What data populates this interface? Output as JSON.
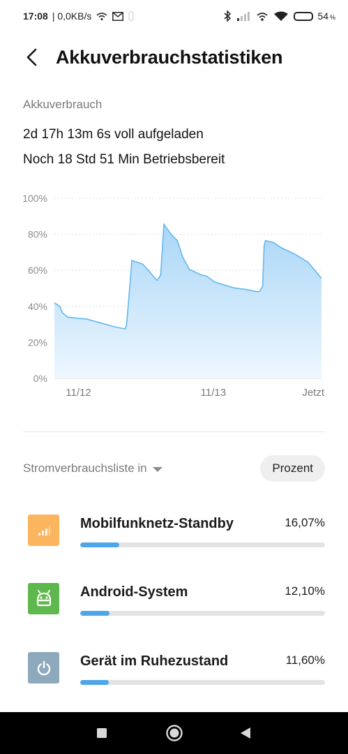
{
  "status_bar": {
    "time": "17:08",
    "speed": "| 0,0KB/s",
    "battery_percent": "54",
    "battery_suffix": "%",
    "battery_level": 0.54
  },
  "header": {
    "title": "Akkuverbrauchstatistiken"
  },
  "summary": {
    "section_label": "Akkuverbrauch",
    "charged_text": "2d 17h 13m 6s voll aufgeladen",
    "remaining_text": "Noch 18 Std 51 Min Betriebsbereit"
  },
  "chart_data": {
    "type": "area",
    "title": "",
    "xlabel": "",
    "ylabel": "",
    "ylim": [
      0,
      100
    ],
    "y_ticks": [
      "100%",
      "80%",
      "60%",
      "40%",
      "20%",
      "0%"
    ],
    "x_ticks": [
      {
        "label": "11/12",
        "x": 0.09
      },
      {
        "label": "11/13",
        "x": 0.595
      },
      {
        "label": "Jetzt",
        "x": 1.0
      }
    ],
    "grid": true,
    "series": [
      {
        "values": [
          [
            0.0,
            42
          ],
          [
            0.02,
            40
          ],
          [
            0.03,
            36.5
          ],
          [
            0.05,
            34
          ],
          [
            0.08,
            33.5
          ],
          [
            0.12,
            33
          ],
          [
            0.18,
            30.5
          ],
          [
            0.23,
            28.5
          ],
          [
            0.265,
            27.5
          ],
          [
            0.27,
            29.5
          ],
          [
            0.275,
            38
          ],
          [
            0.29,
            65.5
          ],
          [
            0.33,
            63.5
          ],
          [
            0.355,
            59.5
          ],
          [
            0.38,
            55
          ],
          [
            0.385,
            54.5
          ],
          [
            0.398,
            57.5
          ],
          [
            0.41,
            85.5
          ],
          [
            0.44,
            79.5
          ],
          [
            0.46,
            76.5
          ],
          [
            0.48,
            67.5
          ],
          [
            0.505,
            60.5
          ],
          [
            0.55,
            57.5
          ],
          [
            0.57,
            56.8
          ],
          [
            0.6,
            53.5
          ],
          [
            0.67,
            50.3
          ],
          [
            0.72,
            49.3
          ],
          [
            0.76,
            48.1
          ],
          [
            0.77,
            48.5
          ],
          [
            0.78,
            51.3
          ],
          [
            0.785,
            73.5
          ],
          [
            0.79,
            76.5
          ],
          [
            0.82,
            75.5
          ],
          [
            0.85,
            72.5
          ],
          [
            0.9,
            69
          ],
          [
            0.95,
            64.5
          ],
          [
            1.0,
            55.5
          ]
        ]
      }
    ],
    "colors": {
      "line": "#62b8ee",
      "fill_top": "#a9d6f7",
      "fill_bottom": "#eef7fe"
    }
  },
  "list": {
    "filter_label": "Stromverbrauchsliste in",
    "percent_button": "Prozent",
    "items": [
      {
        "name": "Mobilfunknetz-Standby",
        "percent": "16,07%",
        "value": 16.07,
        "icon": "cellular-signal-icon",
        "icon_color": "#fbb55e"
      },
      {
        "name": "Android-System",
        "percent": "12,10%",
        "value": 12.1,
        "icon": "android-icon",
        "icon_color": "#5fb84d"
      },
      {
        "name": "Gerät im Ruhezustand",
        "percent": "11,60%",
        "value": 11.6,
        "icon": "power-icon",
        "icon_color": "#8ea9bb"
      }
    ]
  }
}
